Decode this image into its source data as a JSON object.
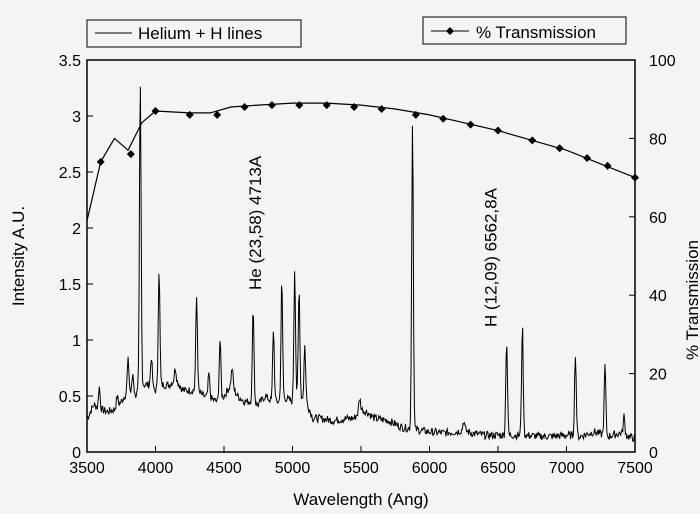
{
  "chart_data": {
    "type": "line",
    "xlabel": "Wavelength (Ang)",
    "ylabel": "Intensity A.U.",
    "y2label": "% Transmission",
    "xlim": [
      3500,
      7500
    ],
    "ylim": [
      0,
      3.5
    ],
    "y2lim": [
      0,
      100
    ],
    "x_ticks": [
      "3500",
      "4000",
      "4500",
      "5000",
      "5500",
      "6000",
      "6500",
      "7000",
      "7500"
    ],
    "y_ticks": [
      "0",
      "0.5",
      "1",
      "1.5",
      "2",
      "2.5",
      "3",
      "3.5"
    ],
    "y2_ticks": [
      "0",
      "20",
      "40",
      "60",
      "80",
      "100"
    ],
    "grid": false,
    "legend": [
      {
        "name": "Helium + H lines",
        "placement": "top-left"
      },
      {
        "name": "% Transmission",
        "placement": "top-right"
      }
    ],
    "annotations": [
      {
        "text": "He (23,58) 4713A",
        "x": 4713
      },
      {
        "text": "H (12,09) 6562,8A",
        "x": 6562.8
      }
    ],
    "series": [
      {
        "name": "Helium + H lines",
        "axis": "left",
        "baseline": [
          [
            3500,
            0.3
          ],
          [
            3550,
            0.42
          ],
          [
            3600,
            0.38
          ],
          [
            3650,
            0.36
          ],
          [
            3700,
            0.38
          ],
          [
            3750,
            0.45
          ],
          [
            3800,
            0.55
          ],
          [
            3850,
            0.5
          ],
          [
            3900,
            0.6
          ],
          [
            3950,
            0.6
          ],
          [
            4000,
            0.55
          ],
          [
            4050,
            0.6
          ],
          [
            4100,
            0.6
          ],
          [
            4150,
            0.65
          ],
          [
            4200,
            0.55
          ],
          [
            4250,
            0.55
          ],
          [
            4300,
            0.55
          ],
          [
            4350,
            0.5
          ],
          [
            4400,
            0.48
          ],
          [
            4450,
            0.45
          ],
          [
            4500,
            0.5
          ],
          [
            4550,
            0.6
          ],
          [
            4600,
            0.5
          ],
          [
            4650,
            0.45
          ],
          [
            4700,
            0.45
          ],
          [
            4750,
            0.42
          ],
          [
            4800,
            0.5
          ],
          [
            4850,
            0.45
          ],
          [
            4900,
            0.45
          ],
          [
            4950,
            0.48
          ],
          [
            5000,
            0.45
          ],
          [
            5050,
            0.5
          ],
          [
            5100,
            0.45
          ],
          [
            5150,
            0.3
          ],
          [
            5200,
            0.3
          ],
          [
            5300,
            0.28
          ],
          [
            5400,
            0.3
          ],
          [
            5450,
            0.3
          ],
          [
            5500,
            0.38
          ],
          [
            5550,
            0.35
          ],
          [
            5600,
            0.3
          ],
          [
            5700,
            0.28
          ],
          [
            5800,
            0.22
          ],
          [
            5900,
            0.2
          ],
          [
            6000,
            0.18
          ],
          [
            6100,
            0.17
          ],
          [
            6200,
            0.18
          ],
          [
            6250,
            0.2
          ],
          [
            6300,
            0.17
          ],
          [
            6400,
            0.15
          ],
          [
            6500,
            0.15
          ],
          [
            6600,
            0.15
          ],
          [
            6700,
            0.15
          ],
          [
            6800,
            0.14
          ],
          [
            6900,
            0.14
          ],
          [
            7000,
            0.15
          ],
          [
            7100,
            0.14
          ],
          [
            7200,
            0.18
          ],
          [
            7300,
            0.14
          ],
          [
            7400,
            0.17
          ],
          [
            7450,
            0.14
          ],
          [
            7500,
            0.12
          ]
        ],
        "lines": [
          [
            3590,
            0.58
          ],
          [
            3720,
            0.5
          ],
          [
            3800,
            0.82
          ],
          [
            3835,
            0.7
          ],
          [
            3889,
            3.28
          ],
          [
            3970,
            0.85
          ],
          [
            4026,
            1.63
          ],
          [
            4144,
            0.75
          ],
          [
            4300,
            1.38
          ],
          [
            4390,
            0.7
          ],
          [
            4471,
            1.0
          ],
          [
            4560,
            0.75
          ],
          [
            4713,
            1.29
          ],
          [
            4861,
            1.1
          ],
          [
            4922,
            1.52
          ],
          [
            5016,
            1.65
          ],
          [
            5048,
            1.45
          ],
          [
            5090,
            0.95
          ],
          [
            5490,
            0.48
          ],
          [
            5876,
            2.95
          ],
          [
            6250,
            0.28
          ],
          [
            6563,
            1.0
          ],
          [
            6678,
            1.13
          ],
          [
            7065,
            0.88
          ],
          [
            7281,
            0.78
          ],
          [
            7420,
            0.32
          ]
        ]
      },
      {
        "name": "% Transmission",
        "axis": "right",
        "x": [
          3500,
          3600,
          3700,
          3800,
          3900,
          4000,
          4250,
          4400,
          4550,
          4750,
          5000,
          5250,
          5500,
          5750,
          6000,
          6250,
          6500,
          6750,
          7000,
          7250,
          7500
        ],
        "values": [
          59,
          74,
          80,
          77,
          84,
          87,
          86.5,
          86.5,
          88,
          88.5,
          89,
          89,
          88.5,
          87.5,
          86,
          84,
          82,
          79.5,
          77,
          73.5,
          70
        ],
        "markers": [
          [
            3600,
            74
          ],
          [
            3820,
            76
          ],
          [
            4000,
            87
          ],
          [
            4250,
            86
          ],
          [
            4450,
            86
          ],
          [
            4650,
            88
          ],
          [
            4850,
            88.5
          ],
          [
            5050,
            88.5
          ],
          [
            5250,
            88.5
          ],
          [
            5450,
            88
          ],
          [
            5650,
            87.5
          ],
          [
            5900,
            86
          ],
          [
            6100,
            85
          ],
          [
            6300,
            83.5
          ],
          [
            6500,
            82
          ],
          [
            6750,
            79.5
          ],
          [
            6950,
            77.5
          ],
          [
            7150,
            75
          ],
          [
            7300,
            73
          ],
          [
            7500,
            70
          ]
        ]
      }
    ]
  }
}
